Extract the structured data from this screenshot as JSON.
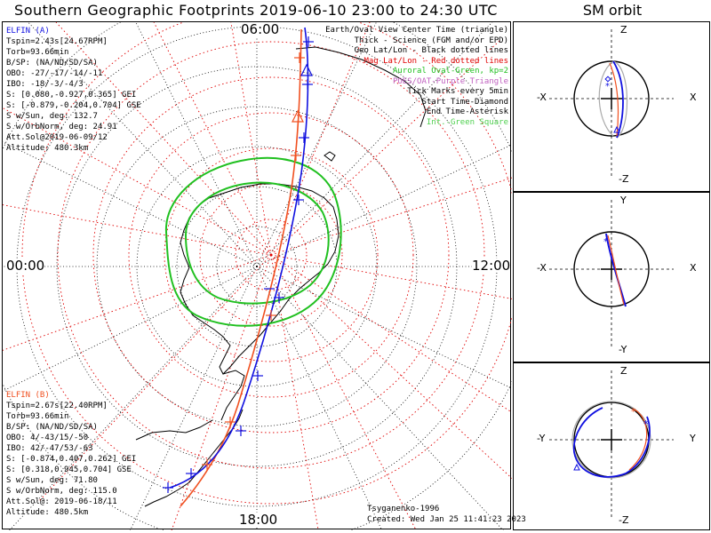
{
  "title": "Southern Geographic Footprints 2019-06-10 23:00 to 24:30 UTC",
  "sm_title": "SM orbit",
  "local_time_labels": {
    "top": "06:00",
    "left": "00:00",
    "right": "12:00",
    "bottom": "18:00"
  },
  "elfin_a": {
    "name": "ELFIN (A)",
    "color": "#1010e0",
    "lines": [
      "Tspin=2.43s[24.67RPM]",
      "Torb=93.66min",
      "B/SP: (NA/ND/SD/SA)",
      "OBO: -27/-17/-14/-11",
      "IBO: -18/-3/-4/3",
      "S: [0.080,-0.927,0.365] GEI",
      "S: [-0.879,-0.204,0.704] GSE",
      "S w/Sun, deg: 132.7",
      "S w/OrbNorm, deg: 24.91",
      "Att.Sol@2019-06-09/12",
      "Altitude: 480.3km"
    ]
  },
  "elfin_b": {
    "name": "ELFIN (B)",
    "color": "#f05020",
    "lines": [
      "Tspin=2.67s[22.40RPM]",
      "Torb=93.66min",
      "B/SP: (NA/ND/SD/SA)",
      "OBO: 4/-43/15/-50",
      "IBO: 42/-47/53/-63",
      "S: [-0.874,0.407,0.262] GEI",
      "S: [0.318,0.945,0.704] GSE",
      "S w/Sun, deg: 71.80",
      "S w/OrbNorm, deg: 115.0",
      "Att.Sol@: 2019-06-18/11",
      "Altitude: 480.5km"
    ]
  },
  "legend": [
    {
      "text": "Earth/Oval View Center Time (triangle)",
      "color": "#000000"
    },
    {
      "text": "Thick - Science (FGM and/or EPD)",
      "color": "#000000"
    },
    {
      "text": "Geo Lat/Lon - Black dotted lines",
      "color": "#000000"
    },
    {
      "text": "Mag Lat/Lon - Red dotted lines",
      "color": "#e00000"
    },
    {
      "text": "Auroral Oval-Green, kp=2",
      "color": "#20c020"
    },
    {
      "text": "POES/OAT-Purple Triangle",
      "color": "#c060c0"
    },
    {
      "text": "Tick Marks every 5min",
      "color": "#000000"
    },
    {
      "text": "Start Time-Diamond",
      "color": "#000000"
    },
    {
      "text": "End Time-Asterisk",
      "color": "#000000"
    },
    {
      "text": "Int.-Green Square",
      "color": "#50d050"
    }
  ],
  "footer": {
    "author": "Tsyganenko-1996",
    "created": "Created: Wed Jan 25 11:41:23 2023"
  },
  "sm_panels": [
    {
      "top": "Z",
      "bottom": "-Z",
      "left": "-X",
      "right": "X"
    },
    {
      "top": "Y",
      "bottom": "-Y",
      "left": "-X",
      "right": "X"
    },
    {
      "top": "Z",
      "bottom": "-Z",
      "left": "-Y",
      "right": "Y"
    }
  ],
  "colors": {
    "mag_grid": "#e00000",
    "geo_grid": "#000000",
    "oval": "#20c020",
    "track_a": "#1010e0",
    "track_b": "#f05020"
  }
}
